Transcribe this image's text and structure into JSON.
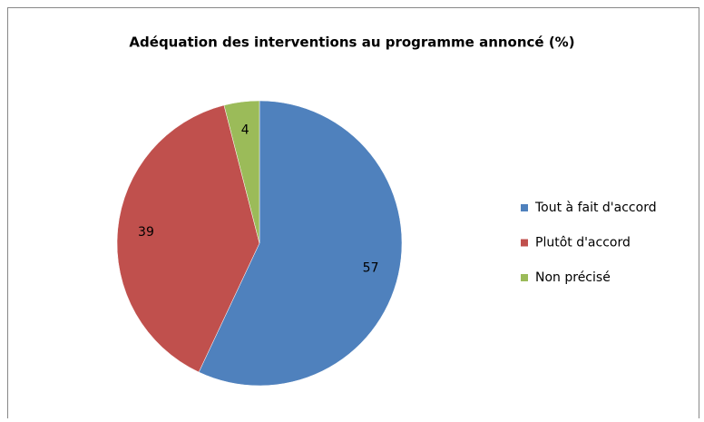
{
  "chart_data": {
    "type": "pie",
    "title": "Adéquation des interventions au programme annoncé (%)",
    "categories": [
      "Tout à fait d'accord",
      "Plutôt d'accord",
      "Non précisé"
    ],
    "values": [
      57,
      39,
      4
    ],
    "colors": [
      "#4f81bd",
      "#c0504d",
      "#9bbb59"
    ],
    "legend": "right"
  }
}
